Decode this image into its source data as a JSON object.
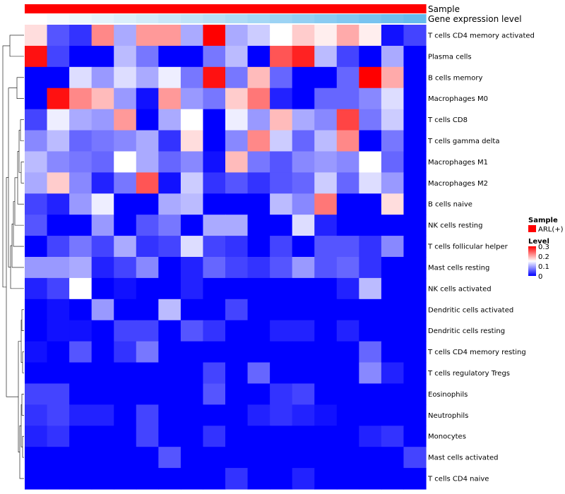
{
  "chart_data": {
    "type": "heatmap",
    "title": "",
    "value_range": [
      0,
      0.3
    ],
    "annotation_tracks": [
      {
        "label": "Sample",
        "colors": [
          "#ff0000",
          "#ff0000",
          "#ff0000",
          "#ff0000",
          "#ff0000",
          "#ff0000",
          "#ff0000",
          "#ff0000",
          "#ff0000",
          "#ff0000",
          "#ff0000",
          "#ff0000",
          "#ff0000",
          "#ff0000",
          "#ff0000",
          "#ff0000",
          "#ff0000",
          "#ff0000"
        ]
      },
      {
        "label": "Gene expression level",
        "colors": [
          "#ffffff",
          "#f6fbfe",
          "#edf7fd",
          "#e4f3fc",
          "#dbeffb",
          "#d2ebfa",
          "#c9e7f9",
          "#c0e3f8",
          "#b7dff7",
          "#aedbf6",
          "#a5d7f5",
          "#9cd3f4",
          "#93cff3",
          "#8acbf2",
          "#81c7f1",
          "#78c3f0",
          "#6fbfef",
          "#66bbee"
        ]
      }
    ],
    "rows": [
      "T cells CD4 memory activated",
      "Plasma cells",
      "B cells memory",
      "Macrophages M0",
      "T cells CD8",
      "T cells gamma delta",
      "Macrophages M1",
      "Macrophages M2",
      "B cells naive",
      "NK cells resting",
      "T cells follicular helper",
      "Mast cells resting",
      "NK cells activated",
      "Dendritic cells activated",
      "Dendritic cells resting",
      "T cells CD4 memory resting",
      "T cells regulatory  Tregs",
      "Eosinophils",
      "Neutrophils",
      "Monocytes",
      "Mast cells activated",
      "T cells CD4 naive"
    ],
    "values": [
      [
        0.17,
        0.05,
        0.03,
        0.22,
        0.1,
        0.21,
        0.21,
        0.1,
        0.3,
        0.1,
        0.12,
        0.15,
        0.18,
        0.16,
        0.2,
        0.16,
        0.01,
        0.04
      ],
      [
        0.29,
        0.04,
        0.0,
        0.0,
        0.11,
        0.07,
        0.0,
        0.0,
        0.07,
        0.11,
        0.0,
        0.25,
        0.28,
        0.11,
        0.04,
        0.0,
        0.1,
        0.0
      ],
      [
        0.0,
        0.0,
        0.13,
        0.09,
        0.13,
        0.1,
        0.14,
        0.07,
        0.29,
        0.07,
        0.19,
        0.06,
        0.0,
        0.0,
        0.06,
        0.3,
        0.2,
        0.0
      ],
      [
        0.0,
        0.29,
        0.22,
        0.19,
        0.09,
        0.01,
        0.21,
        0.09,
        0.07,
        0.18,
        0.23,
        0.02,
        0.0,
        0.06,
        0.06,
        0.08,
        0.13,
        0.0
      ],
      [
        0.04,
        0.14,
        0.1,
        0.09,
        0.21,
        0.0,
        0.1,
        0.15,
        0.0,
        0.14,
        0.09,
        0.19,
        0.1,
        0.08,
        0.26,
        0.07,
        0.12,
        0.0
      ],
      [
        0.08,
        0.11,
        0.06,
        0.07,
        0.08,
        0.1,
        0.03,
        0.17,
        0.0,
        0.08,
        0.22,
        0.12,
        0.06,
        0.11,
        0.22,
        0.0,
        0.07,
        0.0
      ],
      [
        0.11,
        0.08,
        0.07,
        0.06,
        0.15,
        0.1,
        0.06,
        0.08,
        0.01,
        0.19,
        0.07,
        0.05,
        0.08,
        0.09,
        0.08,
        0.15,
        0.06,
        0.0
      ],
      [
        0.1,
        0.18,
        0.08,
        0.02,
        0.07,
        0.25,
        0.01,
        0.12,
        0.03,
        0.05,
        0.03,
        0.05,
        0.06,
        0.12,
        0.06,
        0.13,
        0.09,
        0.0
      ],
      [
        0.04,
        0.02,
        0.09,
        0.14,
        0.0,
        0.0,
        0.1,
        0.11,
        0.0,
        0.0,
        0.0,
        0.11,
        0.08,
        0.23,
        0.0,
        0.0,
        0.17,
        0.0
      ],
      [
        0.05,
        0.0,
        0.0,
        0.09,
        0.0,
        0.05,
        0.07,
        0.0,
        0.1,
        0.1,
        0.0,
        0.0,
        0.13,
        0.02,
        0.0,
        0.0,
        0.0,
        0.0
      ],
      [
        0.0,
        0.04,
        0.07,
        0.04,
        0.1,
        0.03,
        0.04,
        0.13,
        0.04,
        0.03,
        0.0,
        0.04,
        0.0,
        0.05,
        0.05,
        0.03,
        0.08,
        0.0
      ],
      [
        0.09,
        0.09,
        0.1,
        0.02,
        0.04,
        0.08,
        0.0,
        0.02,
        0.06,
        0.04,
        0.03,
        0.05,
        0.09,
        0.05,
        0.06,
        0.03,
        0.0,
        0.0
      ],
      [
        0.02,
        0.04,
        0.15,
        0.0,
        0.01,
        0.0,
        0.0,
        0.02,
        0.0,
        0.0,
        0.0,
        0.0,
        0.0,
        0.0,
        0.02,
        0.11,
        0.0,
        0.0
      ],
      [
        0.0,
        0.01,
        0.0,
        0.09,
        0.0,
        0.0,
        0.11,
        0.0,
        0.0,
        0.04,
        0.0,
        0.0,
        0.0,
        0.0,
        0.0,
        0.0,
        0.0,
        0.0
      ],
      [
        0.0,
        0.01,
        0.01,
        0.0,
        0.04,
        0.04,
        0.0,
        0.05,
        0.03,
        0.0,
        0.0,
        0.02,
        0.02,
        0.0,
        0.02,
        0.0,
        0.0,
        0.0
      ],
      [
        0.01,
        0.0,
        0.05,
        0.0,
        0.03,
        0.07,
        0.0,
        0.0,
        0.0,
        0.0,
        0.0,
        0.0,
        0.0,
        0.0,
        0.0,
        0.06,
        0.0,
        0.0
      ],
      [
        0.0,
        0.0,
        0.0,
        0.0,
        0.0,
        0.0,
        0.0,
        0.0,
        0.04,
        0.0,
        0.06,
        0.0,
        0.0,
        0.0,
        0.0,
        0.08,
        0.02,
        0.0
      ],
      [
        0.04,
        0.04,
        0.0,
        0.0,
        0.0,
        0.0,
        0.0,
        0.0,
        0.05,
        0.0,
        0.0,
        0.03,
        0.04,
        0.0,
        0.0,
        0.0,
        0.0,
        0.0
      ],
      [
        0.03,
        0.04,
        0.02,
        0.02,
        0.0,
        0.04,
        0.0,
        0.0,
        0.0,
        0.0,
        0.02,
        0.03,
        0.02,
        0.01,
        0.0,
        0.0,
        0.0,
        0.0
      ],
      [
        0.02,
        0.03,
        0.0,
        0.0,
        0.0,
        0.04,
        0.0,
        0.0,
        0.03,
        0.0,
        0.0,
        0.0,
        0.0,
        0.0,
        0.0,
        0.02,
        0.03,
        0.0
      ],
      [
        0.0,
        0.0,
        0.0,
        0.0,
        0.0,
        0.0,
        0.05,
        0.0,
        0.0,
        0.0,
        0.0,
        0.0,
        0.0,
        0.0,
        0.0,
        0.0,
        0.0,
        0.04
      ],
      [
        0.0,
        0.0,
        0.0,
        0.0,
        0.0,
        0.0,
        0.0,
        0.0,
        0.0,
        0.03,
        0.0,
        0.0,
        0.02,
        0.0,
        0.0,
        0.0,
        0.0,
        0.0
      ]
    ],
    "legend": {
      "sample_title": "Sample",
      "sample_entry": "ARL(+)",
      "sample_color": "#ff0000",
      "level_title": "Level",
      "level_ticks": [
        "0.3",
        "0.2",
        "0.1",
        "0"
      ],
      "gradient_colors": [
        "#0000ff",
        "#ffffff",
        "#ff0000"
      ]
    }
  }
}
